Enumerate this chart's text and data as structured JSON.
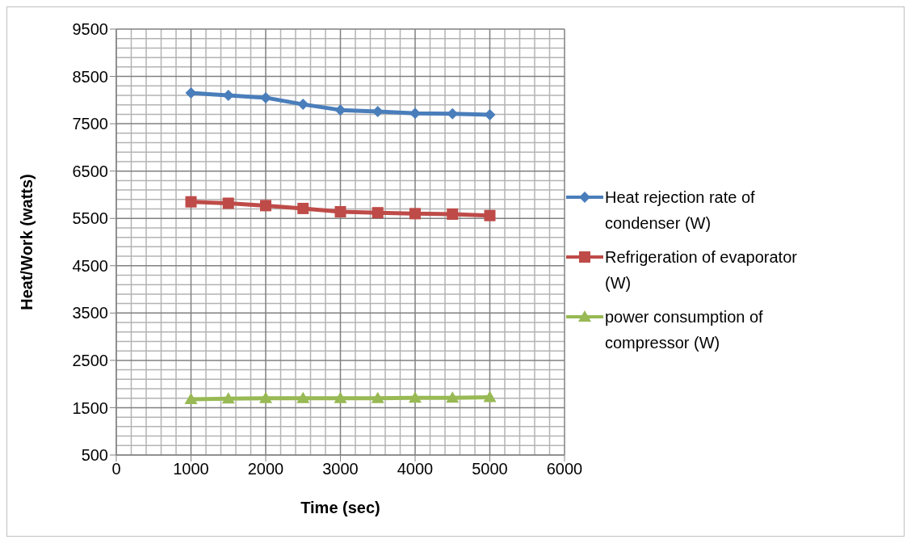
{
  "chart_data": {
    "type": "line",
    "xlabel": "Time (sec)",
    "ylabel": "Heat/Work (watts)",
    "x": [
      1000,
      1500,
      2000,
      2500,
      3000,
      3500,
      4000,
      4500,
      5000
    ],
    "xlim": [
      0,
      6000
    ],
    "xticks": [
      0,
      1000,
      2000,
      3000,
      4000,
      5000,
      6000
    ],
    "ylim": [
      500,
      9500
    ],
    "yticks": [
      500,
      1500,
      2500,
      3500,
      4500,
      5500,
      6500,
      7500,
      8500,
      9500
    ],
    "grid": true,
    "legend": "right",
    "line_style": "solid",
    "series": [
      {
        "name": "Heat rejection rate of condenser (W)",
        "color": "#4a7ebb",
        "marker": "diamond",
        "values": [
          8150,
          8100,
          8050,
          7910,
          7790,
          7760,
          7720,
          7710,
          7690
        ]
      },
      {
        "name": "Refrigeration of evaporator (W)",
        "color": "#be4b48",
        "marker": "square",
        "values": [
          5850,
          5820,
          5770,
          5710,
          5640,
          5620,
          5600,
          5590,
          5560
        ]
      },
      {
        "name": "power consumption of compressor (W)",
        "color": "#98b954",
        "marker": "triangle",
        "values": [
          1680,
          1690,
          1700,
          1700,
          1700,
          1700,
          1710,
          1710,
          1720
        ]
      }
    ]
  }
}
